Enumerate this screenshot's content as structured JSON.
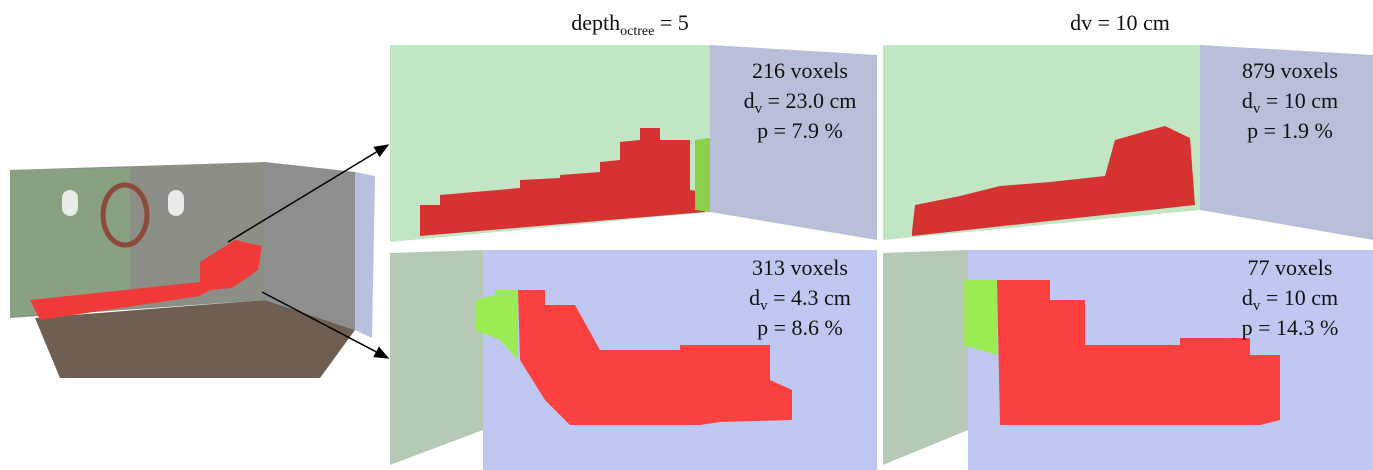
{
  "headers": [
    {
      "main": "depth",
      "sub": "octree",
      "rest": " = 5"
    },
    {
      "main": "dv = 10 cm"
    }
  ],
  "panels": [
    {
      "voxels": "216 voxels",
      "dv": {
        "main": "d",
        "sub": "v",
        "rest": " = 23.0 cm"
      },
      "p": "p = 7.9 %"
    },
    {
      "voxels": "879 voxels",
      "dv": {
        "main": "d",
        "sub": "v",
        "rest": " = 10 cm"
      },
      "p": "p = 1.9 %"
    },
    {
      "voxels": "313 voxels",
      "dv": {
        "main": "d",
        "sub": "v",
        "rest": " = 4.3 cm"
      },
      "p": "p = 8.6 %"
    },
    {
      "voxels": "77 voxels",
      "dv": {
        "main": "d",
        "sub": "v",
        "rest": " = 10 cm"
      },
      "p": "p = 14.3 %"
    }
  ]
}
